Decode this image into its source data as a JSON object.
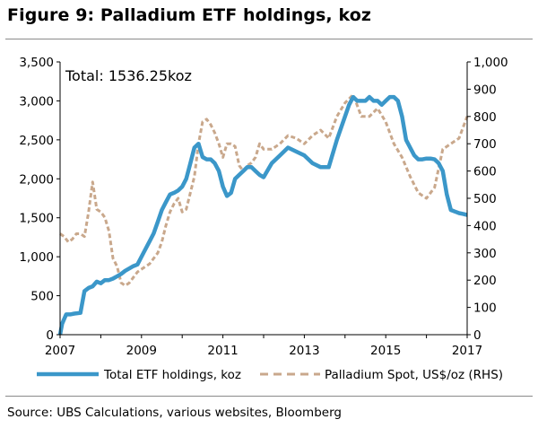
{
  "figure": {
    "title": "Figure 9: Palladium ETF holdings, koz",
    "source": "Source:  UBS Calculations, various websites, Bloomberg",
    "annotation": "Total: 1536.25koz"
  },
  "chart_data": {
    "type": "line",
    "title": "Figure 9: Palladium ETF holdings, koz",
    "xlim": [
      2007,
      2017
    ],
    "x_ticks": [
      2007,
      2009,
      2011,
      2013,
      2015,
      2017
    ],
    "x_tick_labels": [
      "2007",
      "2009",
      "2011",
      "2013",
      "2015",
      "2017"
    ],
    "y_left": {
      "lim": [
        0,
        3500
      ],
      "ticks": [
        0,
        500,
        1000,
        1500,
        2000,
        2500,
        3000,
        3500
      ],
      "tick_labels": [
        "0",
        "500",
        "1,000",
        "1,500",
        "2,000",
        "2,500",
        "3,000",
        "3,500"
      ]
    },
    "y_right": {
      "lim": [
        0,
        1000
      ],
      "ticks": [
        0,
        100,
        200,
        300,
        400,
        500,
        600,
        700,
        800,
        900,
        1000
      ],
      "tick_labels": [
        "0",
        "100",
        "200",
        "300",
        "400",
        "500",
        "600",
        "700",
        "800",
        "900",
        "1,000"
      ]
    },
    "grid": false,
    "legend": "bottom",
    "colors": {
      "holdings": "#3b97c9",
      "spot": "#c9a88c"
    },
    "series": [
      {
        "name": "Total ETF holdings, koz",
        "axis": "left",
        "style": "solid",
        "x": [
          2007.0,
          2007.05,
          2007.15,
          2007.25,
          2007.35,
          2007.5,
          2007.6,
          2007.7,
          2007.8,
          2007.9,
          2008.0,
          2008.1,
          2008.2,
          2008.3,
          2008.4,
          2008.5,
          2008.6,
          2008.7,
          2008.8,
          2008.9,
          2009.0,
          2009.1,
          2009.2,
          2009.3,
          2009.4,
          2009.5,
          2009.6,
          2009.7,
          2009.8,
          2009.9,
          2010.0,
          2010.1,
          2010.2,
          2010.3,
          2010.4,
          2010.5,
          2010.6,
          2010.7,
          2010.8,
          2010.9,
          2011.0,
          2011.1,
          2011.2,
          2011.3,
          2011.4,
          2011.5,
          2011.6,
          2011.7,
          2011.8,
          2011.9,
          2012.0,
          2012.2,
          2012.4,
          2012.6,
          2012.8,
          2013.0,
          2013.2,
          2013.4,
          2013.6,
          2013.8,
          2014.0,
          2014.1,
          2014.2,
          2014.3,
          2014.4,
          2014.5,
          2014.6,
          2014.7,
          2014.8,
          2014.9,
          2015.0,
          2015.1,
          2015.2,
          2015.3,
          2015.4,
          2015.5,
          2015.6,
          2015.7,
          2015.8,
          2015.9,
          2016.0,
          2016.1,
          2016.2,
          2016.3,
          2016.4,
          2016.5,
          2016.6,
          2016.7,
          2016.8,
          2016.9,
          2017.0
        ],
        "values": [
          0,
          140,
          260,
          260,
          270,
          280,
          560,
          600,
          620,
          680,
          660,
          700,
          700,
          720,
          750,
          780,
          820,
          850,
          880,
          900,
          1000,
          1100,
          1200,
          1300,
          1450,
          1600,
          1700,
          1800,
          1820,
          1850,
          1900,
          2000,
          2200,
          2400,
          2450,
          2280,
          2250,
          2250,
          2200,
          2100,
          1900,
          1780,
          1820,
          2000,
          2050,
          2100,
          2150,
          2150,
          2100,
          2050,
          2020,
          2200,
          2300,
          2400,
          2350,
          2300,
          2200,
          2150,
          2150,
          2500,
          2800,
          2950,
          3050,
          3000,
          3000,
          3000,
          3050,
          3000,
          3000,
          2950,
          3000,
          3050,
          3050,
          3000,
          2800,
          2500,
          2400,
          2300,
          2250,
          2250,
          2260,
          2260,
          2250,
          2200,
          2100,
          1800,
          1600,
          1580,
          1560,
          1550,
          1536
        ]
      },
      {
        "name": "Palladium Spot, US$/oz (RHS)",
        "axis": "right",
        "style": "dashed",
        "x": [
          2007.0,
          2007.1,
          2007.2,
          2007.3,
          2007.4,
          2007.5,
          2007.6,
          2007.7,
          2007.8,
          2007.9,
          2008.0,
          2008.1,
          2008.2,
          2008.3,
          2008.4,
          2008.5,
          2008.6,
          2008.7,
          2008.8,
          2008.9,
          2009.0,
          2009.1,
          2009.2,
          2009.3,
          2009.4,
          2009.5,
          2009.6,
          2009.7,
          2009.8,
          2009.9,
          2010.0,
          2010.1,
          2010.2,
          2010.3,
          2010.4,
          2010.5,
          2010.6,
          2010.7,
          2010.8,
          2010.9,
          2011.0,
          2011.1,
          2011.2,
          2011.3,
          2011.4,
          2011.5,
          2011.6,
          2011.7,
          2011.8,
          2011.9,
          2012.0,
          2012.2,
          2012.4,
          2012.6,
          2012.8,
          2013.0,
          2013.2,
          2013.4,
          2013.6,
          2013.8,
          2014.0,
          2014.2,
          2014.4,
          2014.6,
          2014.8,
          2015.0,
          2015.2,
          2015.4,
          2015.6,
          2015.8,
          2016.0,
          2016.2,
          2016.4,
          2016.6,
          2016.8,
          2017.0
        ],
        "values": [
          370,
          360,
          340,
          350,
          370,
          370,
          360,
          450,
          560,
          460,
          450,
          430,
          380,
          280,
          250,
          190,
          180,
          190,
          210,
          230,
          240,
          250,
          260,
          280,
          300,
          340,
          400,
          450,
          480,
          500,
          450,
          460,
          520,
          580,
          700,
          780,
          790,
          770,
          740,
          700,
          650,
          700,
          700,
          690,
          620,
          600,
          620,
          630,
          650,
          700,
          680,
          680,
          700,
          730,
          720,
          700,
          730,
          750,
          720,
          800,
          850,
          880,
          800,
          800,
          830,
          780,
          700,
          650,
          580,
          520,
          500,
          540,
          680,
          700,
          720,
          800
        ]
      }
    ]
  }
}
